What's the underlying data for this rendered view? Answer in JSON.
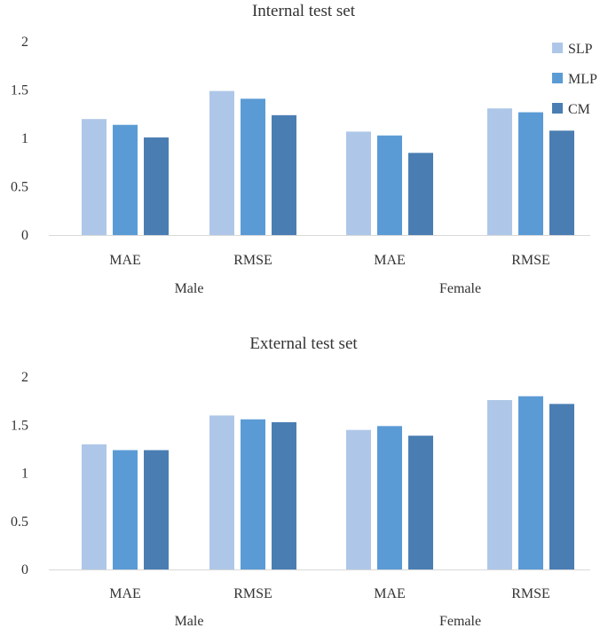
{
  "chart_data": [
    {
      "type": "bar",
      "title": "Internal test set",
      "groups": [
        "Male",
        "Female"
      ],
      "categories": [
        "MAE",
        "RMSE",
        "MAE",
        "RMSE"
      ],
      "category_groups": [
        "Male",
        "Male",
        "Female",
        "Female"
      ],
      "series": [
        {
          "name": "SLP",
          "values": [
            1.2,
            1.49,
            1.07,
            1.31
          ]
        },
        {
          "name": "MLP",
          "values": [
            1.14,
            1.41,
            1.03,
            1.27
          ]
        },
        {
          "name": "CM",
          "values": [
            1.01,
            1.24,
            0.85,
            1.08
          ]
        }
      ],
      "ylim": [
        0,
        2
      ],
      "yticks": [
        "0",
        "0.5",
        "1",
        "1.5",
        "2"
      ],
      "grid": false,
      "legend": "top-right"
    },
    {
      "type": "bar",
      "title": "External test set",
      "groups": [
        "Male",
        "Female"
      ],
      "categories": [
        "MAE",
        "RMSE",
        "MAE",
        "RMSE"
      ],
      "category_groups": [
        "Male",
        "Male",
        "Female",
        "Female"
      ],
      "series": [
        {
          "name": "SLP",
          "values": [
            1.3,
            1.6,
            1.45,
            1.76
          ]
        },
        {
          "name": "MLP",
          "values": [
            1.24,
            1.56,
            1.49,
            1.8
          ]
        },
        {
          "name": "CM",
          "values": [
            1.24,
            1.53,
            1.39,
            1.72
          ]
        }
      ],
      "ylim": [
        0,
        2
      ],
      "yticks": [
        "0",
        "0.5",
        "1",
        "1.5",
        "2"
      ],
      "grid": false,
      "legend": "none"
    }
  ],
  "colors": {
    "SLP": "#aec7e8",
    "MLP": "#5b9bd5",
    "CM": "#4a7eb3"
  }
}
